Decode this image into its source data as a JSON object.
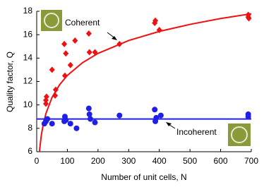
{
  "chart_data": {
    "type": "scatter",
    "x_label": "Number of unit cells, N",
    "y_label": "Quality factor, Q",
    "xlim": [
      0,
      700
    ],
    "xticks": [
      0,
      100,
      200,
      300,
      400,
      500,
      600,
      700
    ],
    "ylim": [
      6,
      18
    ],
    "yticks": [
      6,
      8,
      10,
      12,
      14,
      16,
      18
    ],
    "series": [
      {
        "name": "Coherent",
        "color": "#ee1111",
        "marker": "diamond",
        "x": [
          30,
          30,
          32,
          50,
          60,
          62,
          90,
          92,
          95,
          110,
          125,
          170,
          172,
          190,
          270,
          385,
          387,
          400,
          690,
          690,
          692
        ],
        "values": [
          10.1,
          10.4,
          10.7,
          13.0,
          10.8,
          11.3,
          15.2,
          12.5,
          14.4,
          13.4,
          15.5,
          16.1,
          14.5,
          14.5,
          15.2,
          17.0,
          17.2,
          16.4,
          17.5,
          17.7,
          17.4
        ],
        "fit": {
          "x": [
            9,
            10,
            15,
            20,
            30,
            50,
            75,
            100,
            150,
            200,
            300,
            400,
            500,
            600,
            700
          ],
          "values": [
            5.99,
            6.28,
            7.38,
            8.16,
            9.26,
            10.64,
            11.74,
            12.52,
            13.62,
            14.4,
            15.5,
            16.28,
            16.88,
            17.38,
            17.79
          ]
        }
      },
      {
        "name": "Incoherent",
        "color": "#1f1fe6",
        "marker": "circle",
        "x": [
          25,
          30,
          35,
          50,
          90,
          92,
          95,
          110,
          130,
          170,
          172,
          175,
          190,
          270,
          385,
          387,
          390,
          405,
          690,
          690
        ],
        "values": [
          8.4,
          8.6,
          8.8,
          8.4,
          8.6,
          9.0,
          8.7,
          8.4,
          8.0,
          9.7,
          9.2,
          8.8,
          8.5,
          9.1,
          9.6,
          8.6,
          8.9,
          9.1,
          9.2,
          9.0
        ],
        "fit": {
          "x": [
            0,
            700
          ],
          "values": [
            8.8,
            8.8
          ]
        }
      }
    ]
  }
}
